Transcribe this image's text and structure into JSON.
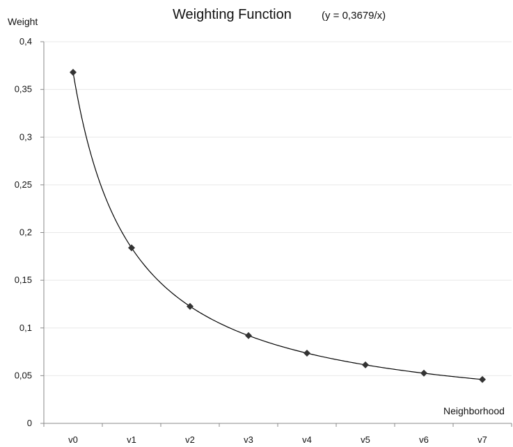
{
  "chart_data": {
    "type": "line",
    "title": "Weighting Function",
    "subtitle": "(y = 0,3679/x)",
    "xlabel": "Neighborhood",
    "ylabel": "Weight",
    "categories": [
      "v0",
      "v1",
      "v2",
      "v3",
      "v4",
      "v5",
      "v6",
      "v7"
    ],
    "x": [
      1,
      2,
      3,
      4,
      5,
      6,
      7,
      8
    ],
    "values": [
      0.3679,
      0.184,
      0.1226,
      0.092,
      0.0736,
      0.0613,
      0.0526,
      0.046
    ],
    "curve_coefficient": 0.3679,
    "ylim": [
      0,
      0.4
    ],
    "yticks": [
      0,
      0.05,
      0.1,
      0.15,
      0.2,
      0.25,
      0.3,
      0.35,
      0.4
    ],
    "ytick_labels": [
      "0",
      "0,05",
      "0,1",
      "0,15",
      "0,2",
      "0,25",
      "0,3",
      "0,35",
      "0,4"
    ],
    "grid": true,
    "marker": "diamond",
    "colors": {
      "line": "#000000",
      "marker": "#333333",
      "grid": "#e8e8e8",
      "axis": "#888888"
    }
  }
}
